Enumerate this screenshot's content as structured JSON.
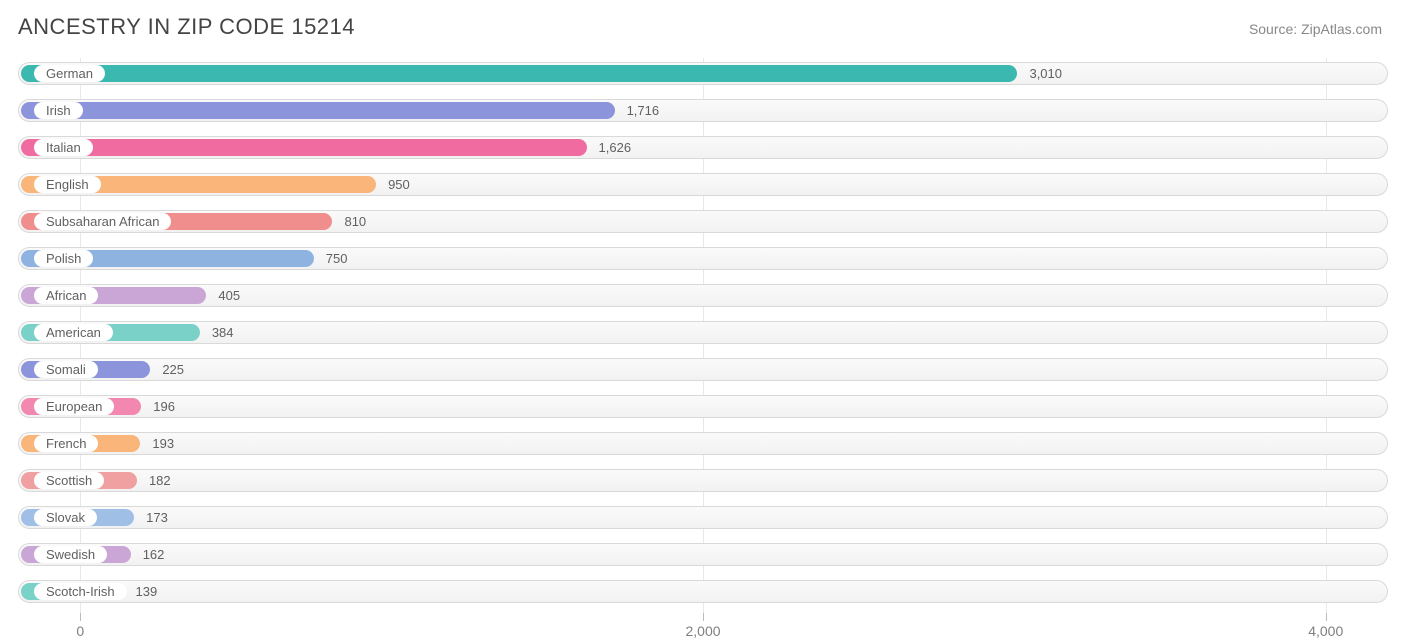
{
  "header": {
    "title": "ANCESTRY IN ZIP CODE 15214",
    "source": "Source: ZipAtlas.com"
  },
  "chart": {
    "type": "bar-horizontal",
    "xlim": [
      -200,
      4200
    ],
    "xticks": [
      0,
      2000,
      4000
    ],
    "xtick_labels": [
      "0",
      "2,000",
      "4,000"
    ],
    "track_border_color": "#d9d9d9",
    "track_bg_top": "#fafafa",
    "track_bg_bottom": "#f2f2f2",
    "label_fontsize": 13,
    "value_fontsize": 13,
    "text_color": "#606060",
    "bars": [
      {
        "label": "German",
        "value": 3010,
        "value_label": "3,010",
        "color": "#3bb8b0"
      },
      {
        "label": "Irish",
        "value": 1716,
        "value_label": "1,716",
        "color": "#8c94db"
      },
      {
        "label": "Italian",
        "value": 1626,
        "value_label": "1,626",
        "color": "#f06ba0"
      },
      {
        "label": "English",
        "value": 950,
        "value_label": "950",
        "color": "#f9b57a"
      },
      {
        "label": "Subsaharan African",
        "value": 810,
        "value_label": "810",
        "color": "#f08d8d"
      },
      {
        "label": "Polish",
        "value": 750,
        "value_label": "750",
        "color": "#8fb3e0"
      },
      {
        "label": "African",
        "value": 405,
        "value_label": "405",
        "color": "#c9a6d6"
      },
      {
        "label": "American",
        "value": 384,
        "value_label": "384",
        "color": "#7ad1c7"
      },
      {
        "label": "Somali",
        "value": 225,
        "value_label": "225",
        "color": "#8c94db"
      },
      {
        "label": "European",
        "value": 196,
        "value_label": "196",
        "color": "#f287b0"
      },
      {
        "label": "French",
        "value": 193,
        "value_label": "193",
        "color": "#f9b57a"
      },
      {
        "label": "Scottish",
        "value": 182,
        "value_label": "182",
        "color": "#f0a0a0"
      },
      {
        "label": "Slovak",
        "value": 173,
        "value_label": "173",
        "color": "#a0bfe6"
      },
      {
        "label": "Swedish",
        "value": 162,
        "value_label": "162",
        "color": "#c9a6d6"
      },
      {
        "label": "Scotch-Irish",
        "value": 139,
        "value_label": "139",
        "color": "#7ad1c7"
      }
    ]
  }
}
